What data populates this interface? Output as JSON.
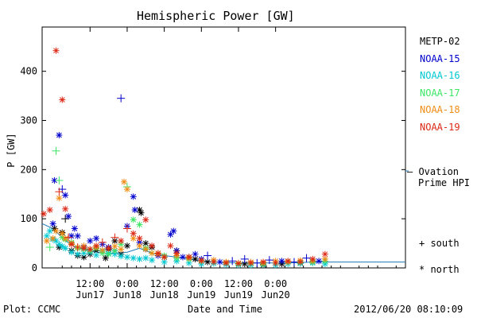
{
  "chart_data": {
    "type": "scatter",
    "title": "Hemispheric Power [GW]",
    "ylabel": "P [GW]",
    "xlabel": "Date and Time",
    "ylim": [
      0,
      490
    ],
    "yticks": [
      0,
      100,
      200,
      300,
      400
    ],
    "xlim_hours": [
      -3.5,
      114
    ],
    "xticks": [
      {
        "hour": 12,
        "time": "12:00",
        "date": "Jun17"
      },
      {
        "hour": 24,
        "time": "0:00",
        "date": "Jun18"
      },
      {
        "hour": 36,
        "time": "12:00",
        "date": "Jun18"
      },
      {
        "hour": 48,
        "time": "0:00",
        "date": "Jun19"
      },
      {
        "hour": 60,
        "time": "12:00",
        "date": "Jun19"
      },
      {
        "hour": 72,
        "time": "0:00",
        "date": "Jun20"
      }
    ],
    "series": [
      {
        "name": "METP-02",
        "color": "#000000",
        "points": [
          [
            0.5,
            80,
            "*"
          ],
          [
            2,
            42,
            "*"
          ],
          [
            3,
            72,
            "*"
          ],
          [
            4,
            100,
            "+"
          ],
          [
            6,
            35,
            "*"
          ],
          [
            8,
            25,
            "*"
          ],
          [
            10,
            22,
            "*"
          ],
          [
            12,
            28,
            "*"
          ],
          [
            14,
            35,
            "*"
          ],
          [
            17,
            20,
            "*"
          ],
          [
            18,
            38,
            "*"
          ],
          [
            20,
            55,
            "*"
          ],
          [
            22,
            28,
            "*"
          ],
          [
            24,
            45,
            "*"
          ],
          [
            28,
            118,
            "*"
          ],
          [
            28.5,
            112,
            "*"
          ],
          [
            30,
            50,
            "*"
          ],
          [
            32,
            42,
            "*"
          ],
          [
            36,
            22,
            "*"
          ],
          [
            40,
            35,
            "*"
          ],
          [
            44,
            22,
            "*"
          ],
          [
            46,
            18,
            "*"
          ],
          [
            50,
            12,
            "*"
          ],
          [
            56,
            10,
            "*"
          ],
          [
            62,
            8,
            "*"
          ],
          [
            68,
            6,
            "*"
          ],
          [
            74,
            8,
            "*"
          ],
          [
            80,
            10,
            "*"
          ],
          [
            84,
            12,
            "*"
          ]
        ]
      },
      {
        "name": "NOAA-15",
        "color": "#0000cc",
        "points": [
          [
            0,
            90,
            "*"
          ],
          [
            0.5,
            178,
            "*"
          ],
          [
            2,
            270,
            "*"
          ],
          [
            3,
            160,
            "+"
          ],
          [
            4,
            148,
            "*"
          ],
          [
            5,
            105,
            "*"
          ],
          [
            6,
            65,
            "*"
          ],
          [
            7,
            80,
            "*"
          ],
          [
            8,
            65,
            "*"
          ],
          [
            10,
            42,
            "*"
          ],
          [
            12,
            55,
            "*"
          ],
          [
            14,
            60,
            "*"
          ],
          [
            16,
            48,
            "*"
          ],
          [
            18,
            42,
            "*"
          ],
          [
            20,
            35,
            "*"
          ],
          [
            22,
            345,
            "+"
          ],
          [
            24,
            85,
            "*"
          ],
          [
            26,
            145,
            "*"
          ],
          [
            26.5,
            118,
            "*"
          ],
          [
            28,
            52,
            "*"
          ],
          [
            30,
            38,
            "*"
          ],
          [
            34,
            25,
            "*"
          ],
          [
            38,
            68,
            "*"
          ],
          [
            39,
            75,
            "*"
          ],
          [
            40,
            35,
            "*"
          ],
          [
            42,
            22,
            "*"
          ],
          [
            46,
            28,
            "*"
          ],
          [
            48,
            18,
            "*"
          ],
          [
            50,
            25,
            "+"
          ],
          [
            54,
            12,
            "*"
          ],
          [
            58,
            14,
            "+"
          ],
          [
            62,
            18,
            "+"
          ],
          [
            66,
            10,
            "+"
          ],
          [
            70,
            16,
            "+"
          ],
          [
            74,
            14,
            "*"
          ],
          [
            78,
            12,
            "+"
          ],
          [
            82,
            20,
            "+"
          ],
          [
            86,
            14,
            "*"
          ]
        ]
      },
      {
        "name": "NOAA-16",
        "color": "#00c8d2",
        "points": [
          [
            -2,
            65,
            "*"
          ],
          [
            -1,
            75,
            "*"
          ],
          [
            0,
            58,
            "*"
          ],
          [
            1,
            55,
            "*"
          ],
          [
            2,
            48,
            "*"
          ],
          [
            3,
            44,
            "*"
          ],
          [
            4,
            40,
            "*"
          ],
          [
            6,
            32,
            "*"
          ],
          [
            8,
            28,
            "*"
          ],
          [
            10,
            30,
            "*"
          ],
          [
            12,
            32,
            "*"
          ],
          [
            14,
            26,
            "*"
          ],
          [
            16,
            34,
            "*"
          ],
          [
            18,
            30,
            "*"
          ],
          [
            20,
            28,
            "*"
          ],
          [
            22,
            24,
            "*"
          ],
          [
            24,
            22,
            "*"
          ],
          [
            26,
            20,
            "*"
          ],
          [
            28,
            18,
            "*"
          ],
          [
            30,
            20,
            "*"
          ],
          [
            32,
            16,
            "*"
          ],
          [
            36,
            12,
            "*"
          ],
          [
            40,
            14,
            "*"
          ],
          [
            44,
            10,
            "*"
          ],
          [
            48,
            8,
            "*"
          ],
          [
            52,
            9,
            "*"
          ],
          [
            56,
            7,
            "*"
          ],
          [
            60,
            6,
            "*"
          ],
          [
            64,
            6,
            "*"
          ],
          [
            68,
            7,
            "*"
          ],
          [
            72,
            6,
            "*"
          ],
          [
            76,
            8,
            "*"
          ],
          [
            80,
            9,
            "*"
          ],
          [
            84,
            10,
            "*"
          ],
          [
            88,
            8,
            "*"
          ]
        ]
      },
      {
        "name": "NOAA-17",
        "color": "#3ce664",
        "points": [
          [
            -1,
            42,
            "+"
          ],
          [
            1,
            238,
            "+"
          ],
          [
            2,
            178,
            "+"
          ],
          [
            3,
            62,
            "*"
          ],
          [
            4,
            58,
            "*"
          ],
          [
            6,
            52,
            "*"
          ],
          [
            8,
            40,
            "*"
          ],
          [
            10,
            38,
            "*"
          ],
          [
            12,
            35,
            "*"
          ],
          [
            14,
            40,
            "*"
          ],
          [
            16,
            30,
            "*"
          ],
          [
            18,
            28,
            "*"
          ],
          [
            20,
            35,
            "*"
          ],
          [
            22,
            48,
            "*"
          ],
          [
            24,
            165,
            "+"
          ],
          [
            26,
            98,
            "*"
          ],
          [
            28,
            88,
            "*"
          ],
          [
            30,
            40,
            "*"
          ],
          [
            32,
            30,
            "*"
          ],
          [
            36,
            25,
            "*"
          ],
          [
            40,
            20,
            "*"
          ],
          [
            44,
            18,
            "*"
          ],
          [
            48,
            14,
            "*"
          ],
          [
            52,
            12,
            "*"
          ],
          [
            56,
            10,
            "*"
          ],
          [
            60,
            8,
            "*"
          ],
          [
            64,
            9,
            "*"
          ],
          [
            68,
            8,
            "*"
          ],
          [
            72,
            10,
            "*"
          ],
          [
            76,
            12,
            "*"
          ],
          [
            80,
            11,
            "*"
          ],
          [
            84,
            12,
            "*"
          ],
          [
            88,
            14,
            "*"
          ]
        ]
      },
      {
        "name": "NOAA-18",
        "color": "#f08c14",
        "points": [
          [
            -2,
            55,
            "*"
          ],
          [
            0,
            60,
            "*"
          ],
          [
            1,
            75,
            "*"
          ],
          [
            2,
            142,
            "*"
          ],
          [
            3,
            70,
            "*"
          ],
          [
            4,
            60,
            "*"
          ],
          [
            6,
            50,
            "*"
          ],
          [
            8,
            42,
            "*"
          ],
          [
            10,
            45,
            "*"
          ],
          [
            12,
            38,
            "*"
          ],
          [
            14,
            42,
            "*"
          ],
          [
            16,
            36,
            "*"
          ],
          [
            18,
            40,
            "*"
          ],
          [
            20,
            44,
            "*"
          ],
          [
            22,
            38,
            "*"
          ],
          [
            23,
            175,
            "*"
          ],
          [
            24,
            160,
            "*"
          ],
          [
            26,
            60,
            "*"
          ],
          [
            28,
            45,
            "*"
          ],
          [
            30,
            38,
            "*"
          ],
          [
            32,
            30,
            "*"
          ],
          [
            34,
            28,
            "*"
          ],
          [
            36,
            22,
            "*"
          ],
          [
            40,
            25,
            "*"
          ],
          [
            44,
            20,
            "*"
          ],
          [
            48,
            14,
            "*"
          ],
          [
            52,
            16,
            "*"
          ],
          [
            56,
            12,
            "*"
          ],
          [
            60,
            10,
            "*"
          ],
          [
            64,
            12,
            "*"
          ],
          [
            68,
            10,
            "*"
          ],
          [
            72,
            14,
            "*"
          ],
          [
            76,
            12,
            "*"
          ],
          [
            80,
            15,
            "*"
          ],
          [
            84,
            14,
            "*"
          ],
          [
            88,
            18,
            "*"
          ]
        ]
      },
      {
        "name": "NOAA-19",
        "color": "#dc2814",
        "points": [
          [
            -3,
            110,
            "*"
          ],
          [
            -1,
            118,
            "*"
          ],
          [
            1,
            442,
            "*"
          ],
          [
            2,
            155,
            "+"
          ],
          [
            3,
            342,
            "*"
          ],
          [
            4,
            120,
            "*"
          ],
          [
            5,
            62,
            "+"
          ],
          [
            6,
            48,
            "*"
          ],
          [
            8,
            42,
            "+"
          ],
          [
            10,
            40,
            "*"
          ],
          [
            12,
            38,
            "*"
          ],
          [
            14,
            45,
            "*"
          ],
          [
            16,
            52,
            "+"
          ],
          [
            18,
            40,
            "*"
          ],
          [
            20,
            62,
            "+"
          ],
          [
            22,
            55,
            "*"
          ],
          [
            24,
            80,
            "+"
          ],
          [
            26,
            70,
            "*"
          ],
          [
            28,
            60,
            "*"
          ],
          [
            30,
            98,
            "*"
          ],
          [
            32,
            45,
            "*"
          ],
          [
            34,
            30,
            "*"
          ],
          [
            36,
            22,
            "*"
          ],
          [
            38,
            45,
            "*"
          ],
          [
            40,
            30,
            "*"
          ],
          [
            44,
            22,
            "*"
          ],
          [
            48,
            15,
            "*"
          ],
          [
            52,
            12,
            "*"
          ],
          [
            56,
            10,
            "*"
          ],
          [
            60,
            9,
            "*"
          ],
          [
            64,
            10,
            "*"
          ],
          [
            68,
            12,
            "*"
          ],
          [
            72,
            10,
            "*"
          ],
          [
            76,
            14,
            "*"
          ],
          [
            80,
            12,
            "*"
          ],
          [
            84,
            18,
            "*"
          ],
          [
            88,
            28,
            "*"
          ]
        ]
      }
    ],
    "ovation": {
      "name": "Ovation Prime HPI",
      "label_line1": "– Ovation",
      "label_line2": "Prime HPI",
      "color": "#1e78b4",
      "points": [
        [
          -3.5,
          90
        ],
        [
          0,
          80
        ],
        [
          4,
          55
        ],
        [
          8,
          40
        ],
        [
          12,
          35
        ],
        [
          16,
          30
        ],
        [
          20,
          30
        ],
        [
          24,
          32
        ],
        [
          28,
          40
        ],
        [
          32,
          30
        ],
        [
          36,
          25
        ],
        [
          40,
          22
        ],
        [
          44,
          18
        ],
        [
          48,
          14
        ],
        [
          52,
          12
        ],
        [
          56,
          11
        ],
        [
          60,
          10
        ],
        [
          64,
          10
        ],
        [
          68,
          10
        ],
        [
          72,
          10
        ],
        [
          76,
          10
        ],
        [
          80,
          11
        ],
        [
          84,
          12
        ],
        [
          88,
          12
        ],
        [
          92,
          12
        ],
        [
          96,
          12
        ],
        [
          100,
          12
        ],
        [
          104,
          12
        ],
        [
          108,
          12
        ],
        [
          114,
          12
        ]
      ]
    },
    "symbol_legend": {
      "south": "+ south",
      "north": "* north"
    }
  },
  "footer": {
    "plot_source": "Plot: CCMC",
    "timestamp": "2012/06/20 08:10:09"
  }
}
